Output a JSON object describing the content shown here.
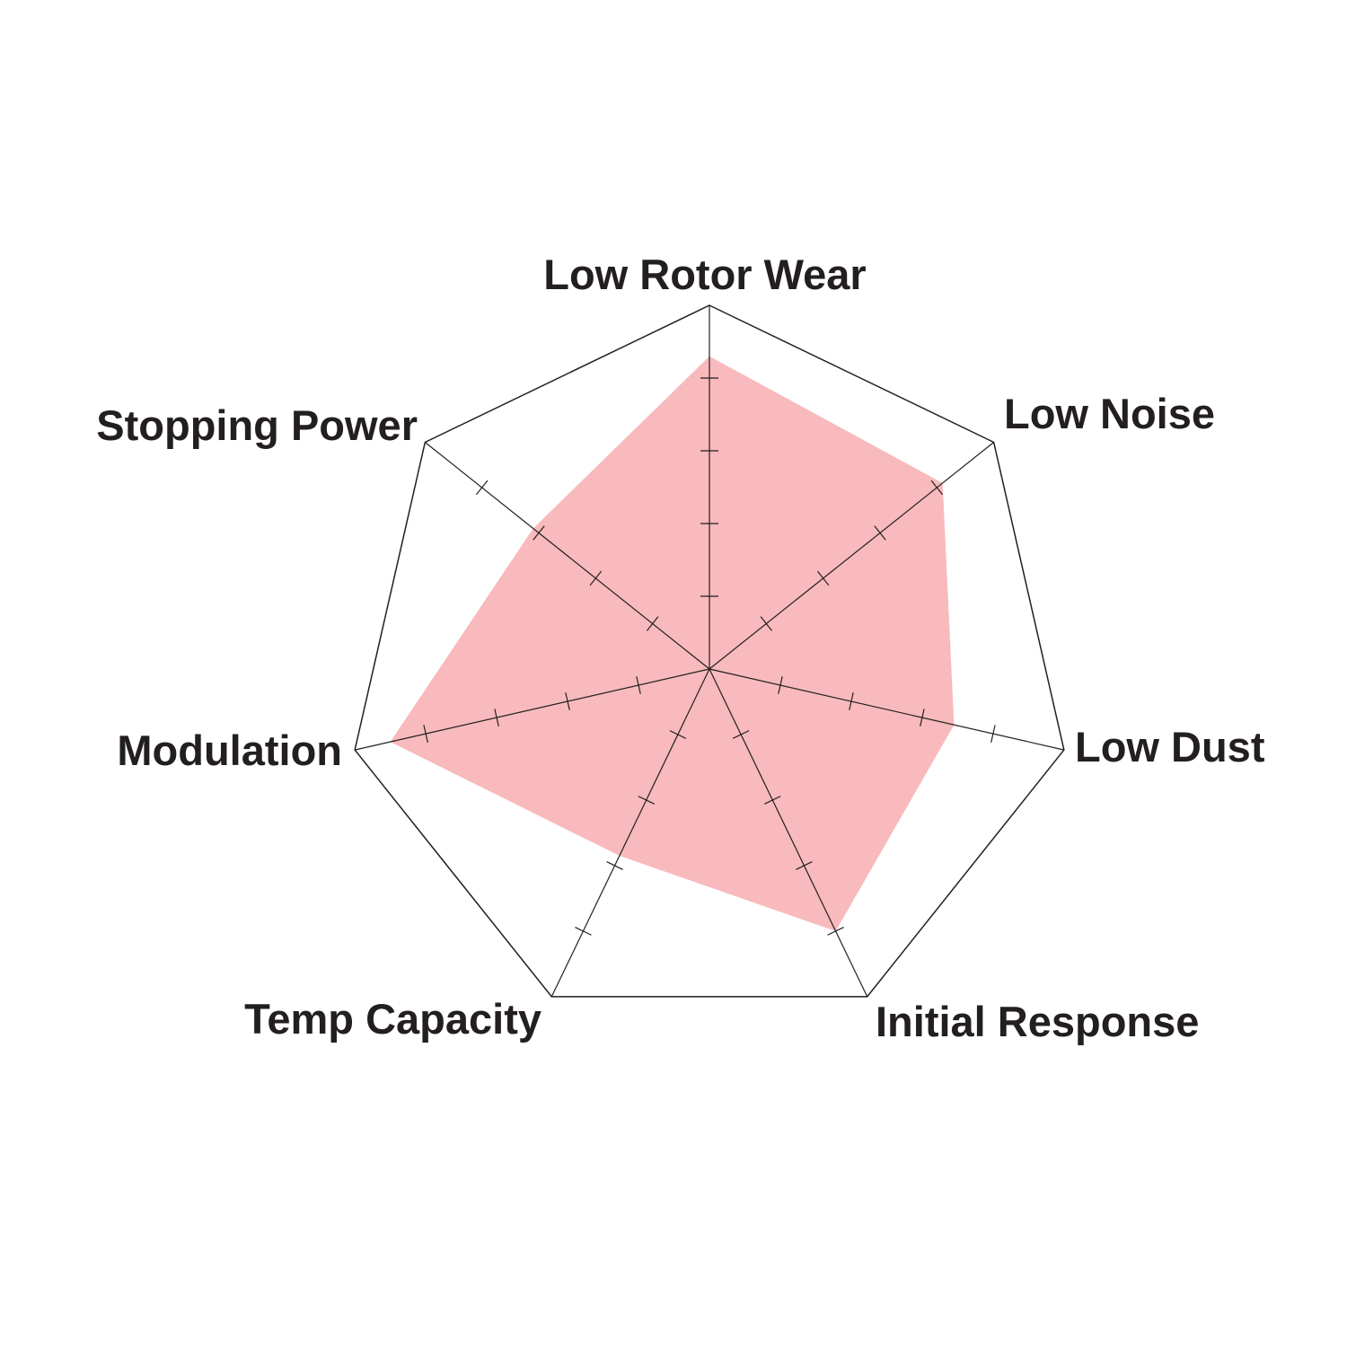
{
  "chart_data": {
    "type": "radar",
    "axes": [
      "Low Rotor Wear",
      "Low Noise",
      "Low Dust",
      "Initial Response",
      "Temp Capacity",
      "Modulation",
      "Stopping Power"
    ],
    "values": [
      4.3,
      4.1,
      3.45,
      4.0,
      2.85,
      4.5,
      3.1
    ],
    "range": [
      0,
      5
    ],
    "tick_count": 4,
    "grid": true,
    "fill_color": "#f8babc",
    "line_color": "#231f20"
  }
}
